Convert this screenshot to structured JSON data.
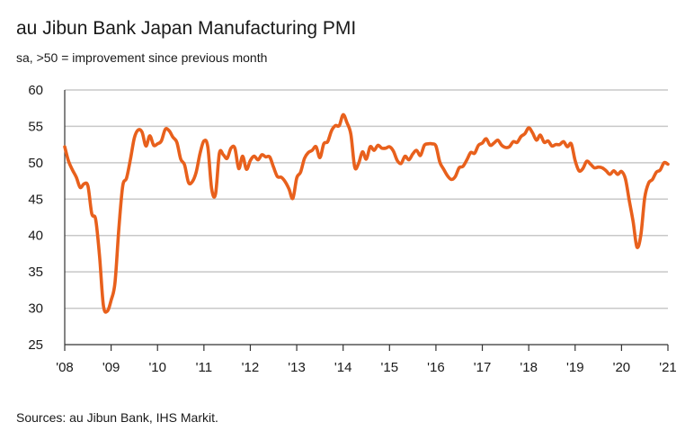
{
  "chart_data": {
    "type": "line",
    "title": "au Jibun Bank Japan Manufacturing PMI",
    "subtitle": "sa, >50 = improvement since previous month",
    "source": "Sources: au Jibun Bank, IHS Markit.",
    "xlabel": "",
    "ylabel": "",
    "ylim": [
      25,
      60
    ],
    "yticks": [
      25,
      30,
      35,
      40,
      45,
      50,
      55,
      60
    ],
    "xlim": [
      2008.0,
      2021.0
    ],
    "xtick_labels": [
      "'08",
      "'09",
      "'10",
      "'11",
      "'12",
      "'13",
      "'14",
      "'15",
      "'16",
      "'17",
      "'18",
      "'19",
      "'20",
      "'21"
    ],
    "grid": true,
    "series": [
      {
        "name": "au Jibun Bank Japan Manufacturing PMI",
        "color": "#e8601c",
        "x": [
          2008.0,
          2008.083,
          2008.167,
          2008.25,
          2008.333,
          2008.417,
          2008.5,
          2008.583,
          2008.667,
          2008.75,
          2008.833,
          2008.917,
          2009.0,
          2009.083,
          2009.167,
          2009.25,
          2009.333,
          2009.417,
          2009.5,
          2009.583,
          2009.667,
          2009.75,
          2009.833,
          2009.917,
          2010.0,
          2010.083,
          2010.167,
          2010.25,
          2010.333,
          2010.417,
          2010.5,
          2010.583,
          2010.667,
          2010.75,
          2010.833,
          2010.917,
          2011.0,
          2011.083,
          2011.167,
          2011.25,
          2011.333,
          2011.417,
          2011.5,
          2011.583,
          2011.667,
          2011.75,
          2011.833,
          2011.917,
          2012.0,
          2012.083,
          2012.167,
          2012.25,
          2012.333,
          2012.417,
          2012.5,
          2012.583,
          2012.667,
          2012.75,
          2012.833,
          2012.917,
          2013.0,
          2013.083,
          2013.167,
          2013.25,
          2013.333,
          2013.417,
          2013.5,
          2013.583,
          2013.667,
          2013.75,
          2013.833,
          2013.917,
          2014.0,
          2014.083,
          2014.167,
          2014.25,
          2014.333,
          2014.417,
          2014.5,
          2014.583,
          2014.667,
          2014.75,
          2014.833,
          2014.917,
          2015.0,
          2015.083,
          2015.167,
          2015.25,
          2015.333,
          2015.417,
          2015.5,
          2015.583,
          2015.667,
          2015.75,
          2015.833,
          2015.917,
          2016.0,
          2016.083,
          2016.167,
          2016.25,
          2016.333,
          2016.417,
          2016.5,
          2016.583,
          2016.667,
          2016.75,
          2016.833,
          2016.917,
          2017.0,
          2017.083,
          2017.167,
          2017.25,
          2017.333,
          2017.417,
          2017.5,
          2017.583,
          2017.667,
          2017.75,
          2017.833,
          2017.917,
          2018.0,
          2018.083,
          2018.167,
          2018.25,
          2018.333,
          2018.417,
          2018.5,
          2018.583,
          2018.667,
          2018.75,
          2018.833,
          2018.917,
          2019.0,
          2019.083,
          2019.167,
          2019.25,
          2019.333,
          2019.417,
          2019.5,
          2019.583,
          2019.667,
          2019.75,
          2019.833,
          2019.917,
          2020.0,
          2020.083,
          2020.167,
          2020.25,
          2020.333,
          2020.417,
          2020.5,
          2020.583,
          2020.667,
          2020.75,
          2020.833,
          2020.917,
          2021.0
        ],
        "values": [
          52.2,
          50.2,
          49.0,
          48.0,
          46.6,
          47.1,
          46.8,
          43.0,
          42.2,
          37.2,
          30.4,
          29.6,
          31.1,
          33.5,
          41.0,
          46.8,
          47.9,
          50.5,
          53.4,
          54.5,
          54.2,
          52.3,
          53.7,
          52.4,
          52.6,
          53.0,
          54.6,
          54.4,
          53.5,
          52.8,
          50.5,
          49.7,
          47.3,
          47.4,
          48.7,
          51.3,
          53.0,
          52.2,
          46.4,
          45.7,
          51.3,
          51.1,
          50.6,
          52.0,
          52.0,
          49.2,
          50.9,
          49.1,
          50.3,
          50.9,
          50.4,
          51.1,
          50.8,
          50.8,
          49.4,
          48.1,
          48.0,
          47.4,
          46.4,
          45.1,
          47.9,
          48.7,
          50.6,
          51.4,
          51.7,
          52.2,
          50.7,
          52.6,
          52.9,
          54.4,
          55.1,
          55.1,
          56.6,
          55.5,
          53.9,
          49.4,
          49.9,
          51.5,
          50.5,
          52.2,
          51.7,
          52.4,
          52.0,
          52.0,
          52.2,
          51.6,
          50.3,
          49.9,
          50.9,
          50.4,
          51.2,
          51.7,
          51.0,
          52.4,
          52.6,
          52.6,
          52.3,
          50.1,
          49.1,
          48.2,
          47.7,
          48.1,
          49.3,
          49.5,
          50.4,
          51.4,
          51.3,
          52.4,
          52.7,
          53.3,
          52.4,
          52.7,
          53.1,
          52.4,
          52.1,
          52.2,
          52.9,
          52.8,
          53.6,
          54.0,
          54.8,
          54.1,
          53.1,
          53.8,
          52.8,
          53.0,
          52.3,
          52.5,
          52.5,
          52.9,
          52.2,
          52.6,
          50.3,
          48.9,
          49.2,
          50.2,
          49.8,
          49.3,
          49.4,
          49.3,
          48.9,
          48.4,
          48.9,
          48.4,
          48.8,
          47.8,
          44.8,
          41.9,
          38.4,
          40.1,
          45.2,
          47.2,
          47.7,
          48.7,
          49.0,
          50.0,
          49.8
        ]
      }
    ]
  }
}
